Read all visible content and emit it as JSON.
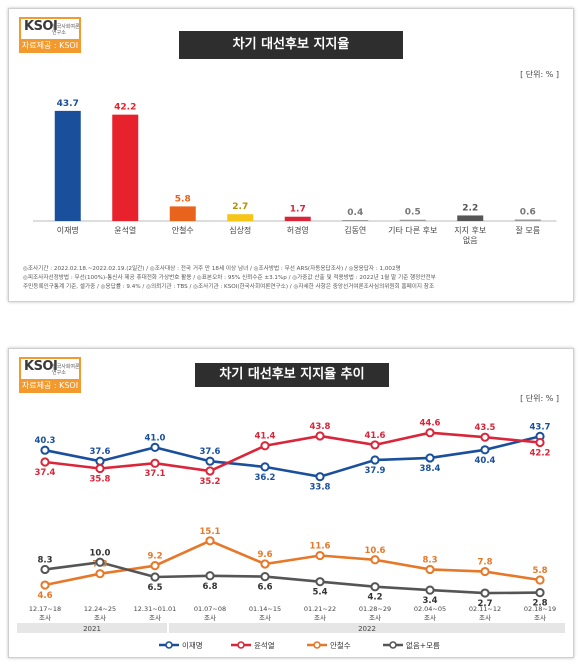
{
  "panel1": {
    "logo": {
      "brand": "KSOI",
      "sub": "한국사회여론연구소",
      "source": "자료제공 : KSOI"
    },
    "title": "차기 대선후보 지지율",
    "unit": "[ 단위: % ]",
    "notes": [
      "◎조사기간 : 2022.02.18.~2022.02.19.(2일간)  / ◎조사대상 : 전국 거주 만 18세 이상 남녀  / ◎조사방법 : 무선 ARS(자동응답조사)  / ◎응응답자 : 1,002명",
      "◎피조사자선정방법 : 무선(100%)-통신사 제공 휴대전화 가상번호 활용  / ◎표본오차 : 95% 신뢰수준 ±3.1%p  / ◎가중값 산출 및 적용방법 : 2022년 1월 말 기준 행정안전부",
      "주민등록인구통계 기준, 셀가중  / ◎응답률 : 9.4%  / ◎의뢰기관 : TBS  / ◎조사기관 : KSOI(한국사회여론연구소)  / ◎자세한 사항은 중앙선거여론조사심의위원회 홈페이지 참조"
    ]
  },
  "panel2": {
    "logo": {
      "brand": "KSOI",
      "sub": "한국사회여론연구소",
      "source": "자료제공 : KSOI"
    },
    "title": "차기 대선후보 지지율 추이",
    "unit": "[ 단위: % ]",
    "years": [
      "2021",
      "2022"
    ]
  },
  "colors": {
    "lee": "#1a4f9c",
    "yoon": "#d9263a",
    "ahn": "#e6782a",
    "sim": "#f5c518",
    "heo": "#d9263a",
    "none": "#555555"
  },
  "chart_data": [
    {
      "type": "bar",
      "title": "차기 대선후보 지지율",
      "categories": [
        "이재명",
        "윤석열",
        "안철수",
        "심상정",
        "허경영",
        "김동연",
        "기타 다른 후보",
        "지지 후보 없음",
        "잘 모름"
      ],
      "values": [
        43.7,
        42.2,
        5.8,
        2.7,
        1.7,
        0.4,
        0.5,
        2.2,
        0.6
      ],
      "value_labels": [
        "43.7",
        "42.2",
        "5.8",
        "2.7",
        "1.7",
        "0.4",
        "0.5",
        "2.2",
        "0.6"
      ],
      "bar_colors": [
        "#1a4f9c",
        "#e8222c",
        "#e8641c",
        "#f5c518",
        "#d9263a",
        "#9a9a9a",
        "#9a9a9a",
        "#555555",
        "#9a9a9a"
      ],
      "ylim": [
        0,
        50
      ],
      "xlabel": "",
      "ylabel": ""
    },
    {
      "type": "line",
      "title": "차기 대선후보 지지율 추이",
      "x": [
        "12.17~18 조사",
        "12.24~25 조사",
        "12.31~01.01 조사",
        "01.07~08 조사",
        "01.14~15 조사",
        "01.21~22 조사",
        "01.28~29 조사",
        "02.04~05 조사",
        "02.11~12 조사",
        "02.18~19 조사"
      ],
      "series": [
        {
          "name": "이재명",
          "color": "#1a4f9c",
          "values": [
            40.3,
            37.6,
            41.0,
            37.6,
            36.2,
            33.8,
            37.9,
            38.4,
            40.4,
            43.7
          ]
        },
        {
          "name": "윤석열",
          "color": "#d9263a",
          "values": [
            37.4,
            35.8,
            37.1,
            35.2,
            41.4,
            43.8,
            41.6,
            44.6,
            43.5,
            42.2
          ]
        },
        {
          "name": "안철수",
          "color": "#e6782a",
          "values": [
            4.6,
            7.3,
            9.2,
            15.1,
            9.6,
            11.6,
            10.6,
            8.3,
            7.8,
            5.8
          ]
        },
        {
          "name": "없음+모름",
          "color": "#555555",
          "values": [
            8.3,
            10.0,
            6.5,
            6.8,
            6.6,
            5.4,
            4.2,
            3.4,
            2.7,
            2.8
          ]
        }
      ],
      "legend_position": "bottom",
      "xlabel": "",
      "ylabel": ""
    }
  ]
}
